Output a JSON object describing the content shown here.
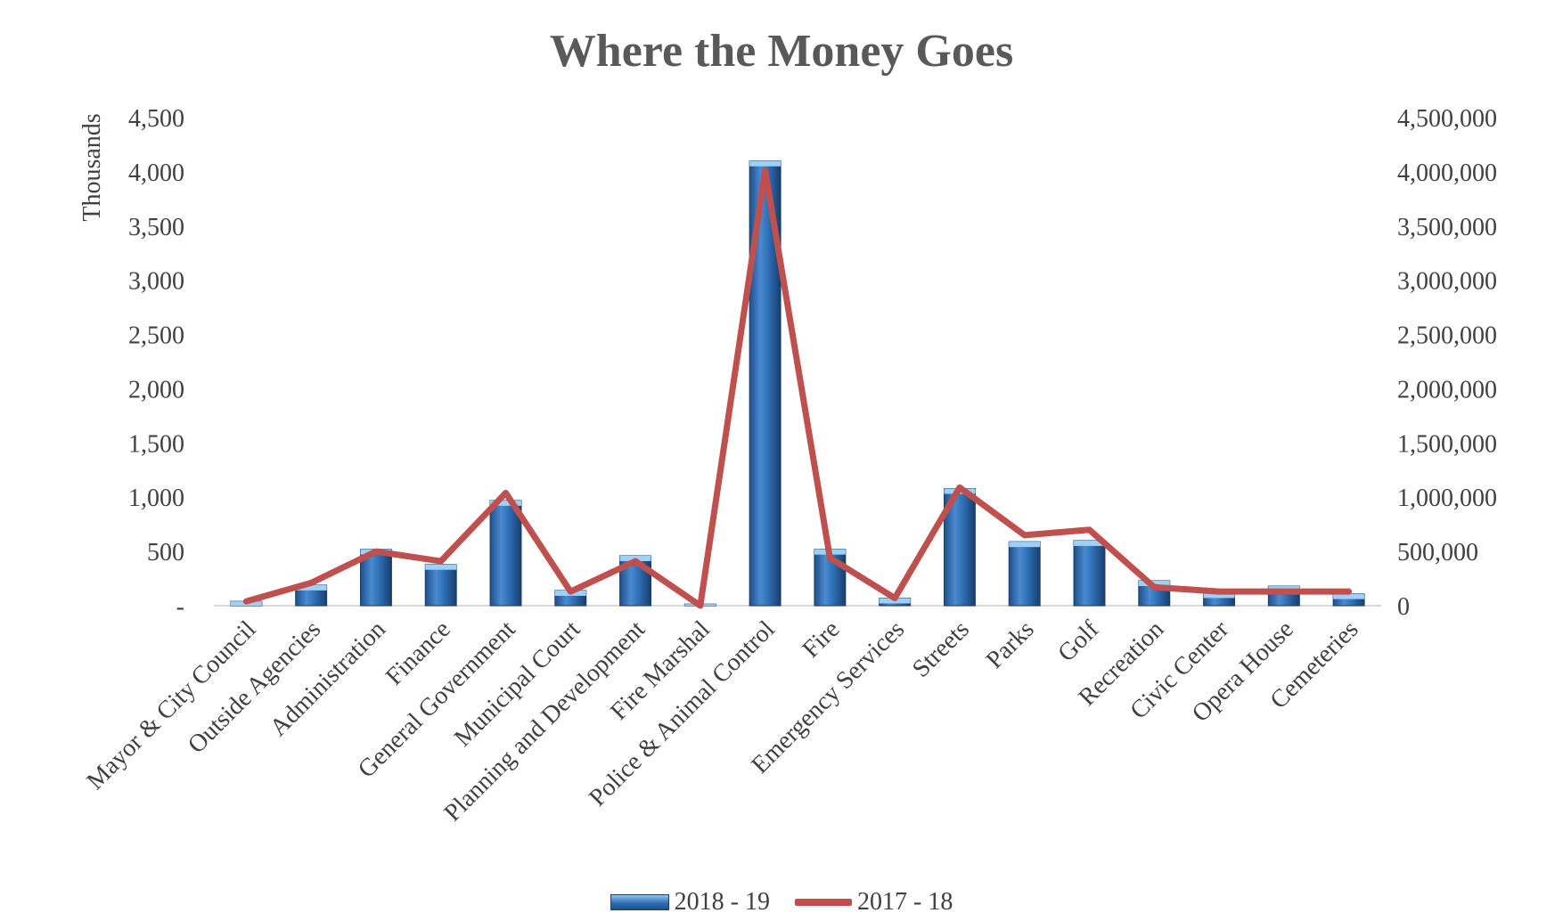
{
  "chart_data": {
    "type": "bar",
    "title": "Where the Money Goes",
    "ylabel": "Thousands",
    "ylim": [
      0,
      4500
    ],
    "y2lim": [
      0,
      4500000
    ],
    "left_ticks": [
      "-",
      "500",
      "1,000",
      "1,500",
      "2,000",
      "2,500",
      "3,000",
      "3,500",
      "4,000",
      "4,500"
    ],
    "right_ticks": [
      "0",
      "500,000",
      "1,000,000",
      "1,500,000",
      "2,000,000",
      "2,500,000",
      "3,000,000",
      "3,500,000",
      "4,000,000",
      "4,500,000"
    ],
    "categories": [
      "Mayor & City Council",
      "Outside Agencies",
      "Administration",
      "Finance",
      "General Government",
      "Municipal Court",
      "Planning and Development",
      "Fire Marshal",
      "Police & Animal Control",
      "Fire",
      "Emergency Services",
      "Streets",
      "Parks",
      "Golf",
      "Recreation",
      "Civic Center",
      "Opera House",
      "Cemeteries"
    ],
    "series": [
      {
        "name": "2018 - 19",
        "type": "bar",
        "axis": "left",
        "color": "#2f6fb5",
        "values": [
          40,
          190,
          520,
          380,
          970,
          140,
          460,
          15,
          4100,
          520,
          70,
          1080,
          590,
          600,
          230,
          120,
          180,
          110
        ]
      },
      {
        "name": "2017 - 18",
        "type": "line",
        "axis": "right",
        "color": "#c0504d",
        "values": [
          40000,
          210000,
          500000,
          410000,
          1040000,
          130000,
          410000,
          0,
          4010000,
          440000,
          70000,
          1090000,
          650000,
          700000,
          170000,
          130000,
          130000,
          130000
        ]
      }
    ],
    "legend_position": "bottom",
    "grid": false
  }
}
